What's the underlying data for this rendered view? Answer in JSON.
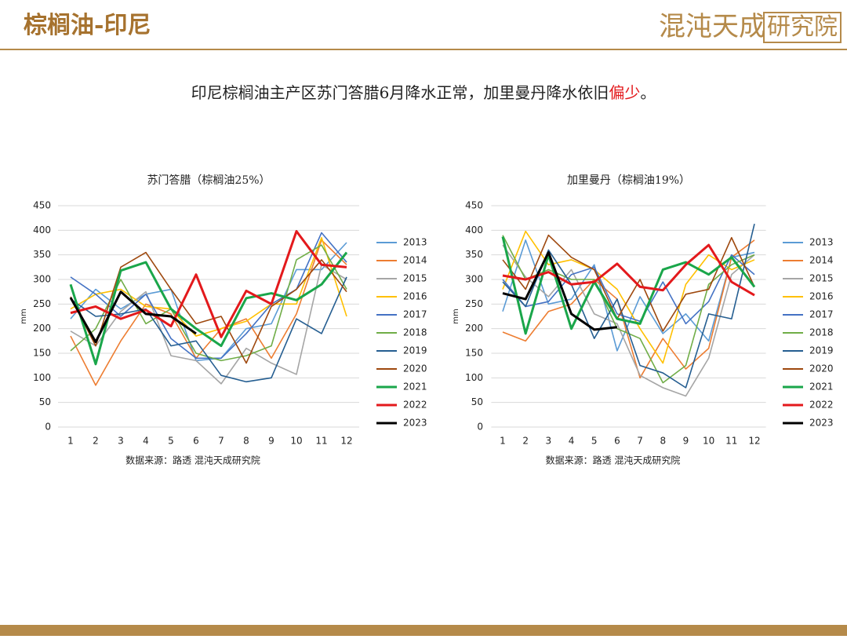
{
  "header": {
    "title": "棕榈油-印尼",
    "logo": "混沌天成",
    "logo_box": "研究院"
  },
  "subtitle": {
    "text": "印尼棕榈油主产区苏门答腊6月降水正常，加里曼丹降水依旧",
    "highlight": "偏少",
    "end": "。"
  },
  "chart_data": [
    {
      "type": "line",
      "title": "苏门答腊（棕榈油25%）",
      "y_label": "mm",
      "source": "数据来源：路透 混沌天成研究院",
      "categories": [
        "1",
        "2",
        "3",
        "4",
        "5",
        "6",
        "7",
        "8",
        "9",
        "10",
        "11",
        "12"
      ],
      "ylim": [
        0,
        450
      ],
      "yticks": [
        0,
        50,
        100,
        150,
        200,
        250,
        300,
        350,
        400,
        450
      ],
      "grid": true,
      "legend": "right",
      "series": [
        {
          "name": "2013",
          "color": "#5b9bd5",
          "values": [
            220,
            280,
            240,
            270,
            280,
            135,
            140,
            200,
            210,
            320,
            320,
            375
          ]
        },
        {
          "name": "2014",
          "color": "#ed7d31",
          "values": [
            185,
            85,
            175,
            250,
            230,
            140,
            200,
            220,
            140,
            230,
            380,
            330
          ]
        },
        {
          "name": "2015",
          "color": "#a5a5a5",
          "values": [
            195,
            165,
            235,
            275,
            145,
            135,
            88,
            160,
            130,
            107,
            330,
            300
          ]
        },
        {
          "name": "2016",
          "color": "#ffc000",
          "values": [
            240,
            270,
            280,
            245,
            240,
            185,
            200,
            215,
            250,
            250,
            385,
            225
          ]
        },
        {
          "name": "2017",
          "color": "#4472c4",
          "values": [
            305,
            270,
            225,
            270,
            180,
            140,
            140,
            190,
            250,
            280,
            395,
            335
          ]
        },
        {
          "name": "2018",
          "color": "#70ad47",
          "values": [
            155,
            200,
            300,
            210,
            240,
            150,
            135,
            145,
            165,
            340,
            370,
            280
          ]
        },
        {
          "name": "2019",
          "color": "#255e91",
          "values": [
            260,
            225,
            230,
            240,
            165,
            175,
            105,
            92,
            100,
            220,
            190,
            305
          ]
        },
        {
          "name": "2020",
          "color": "#9e480e",
          "values": [
            265,
            165,
            325,
            355,
            280,
            210,
            225,
            130,
            245,
            280,
            340,
            275
          ]
        },
        {
          "name": "2021",
          "color": "#1aa64a",
          "values": [
            290,
            128,
            318,
            335,
            240,
            200,
            165,
            262,
            272,
            258,
            290,
            355
          ]
        },
        {
          "name": "2022",
          "color": "#e3191c",
          "values": [
            232,
            245,
            220,
            238,
            205,
            310,
            183,
            277,
            250,
            398,
            330,
            325
          ]
        },
        {
          "name": "2023",
          "color": "#000000",
          "values": [
            263,
            173,
            275,
            230,
            225,
            190,
            null,
            null,
            null,
            null,
            null,
            null
          ]
        }
      ]
    },
    {
      "type": "line",
      "title": "加里曼丹（棕榈油19%）",
      "y_label": "mm",
      "source": "数据来源：路透 混沌天成研究院",
      "categories": [
        "1",
        "2",
        "3",
        "4",
        "5",
        "6",
        "7",
        "8",
        "9",
        "10",
        "11",
        "12"
      ],
      "ylim": [
        0,
        450
      ],
      "yticks": [
        0,
        50,
        100,
        150,
        200,
        250,
        300,
        350,
        400,
        450
      ],
      "grid": true,
      "legend": "right",
      "series": [
        {
          "name": "2013",
          "color": "#5b9bd5",
          "values": [
            235,
            380,
            250,
            260,
            330,
            155,
            265,
            190,
            230,
            175,
            345,
            355
          ]
        },
        {
          "name": "2014",
          "color": "#ed7d31",
          "values": [
            193,
            175,
            235,
            250,
            300,
            260,
            100,
            180,
            118,
            160,
            345,
            380
          ]
        },
        {
          "name": "2015",
          "color": "#a5a5a5",
          "values": [
            370,
            305,
            265,
            320,
            230,
            210,
            105,
            80,
            63,
            140,
            310,
            350
          ]
        },
        {
          "name": "2016",
          "color": "#ffc000",
          "values": [
            280,
            398,
            330,
            340,
            320,
            280,
            200,
            130,
            290,
            350,
            320,
            340
          ]
        },
        {
          "name": "2017",
          "color": "#4472c4",
          "values": [
            300,
            245,
            255,
            310,
            325,
            230,
            215,
            295,
            210,
            255,
            350,
            310
          ]
        },
        {
          "name": "2018",
          "color": "#70ad47",
          "values": [
            390,
            300,
            320,
            300,
            300,
            200,
            180,
            90,
            125,
            290,
            330,
            350
          ]
        },
        {
          "name": "2019",
          "color": "#255e91",
          "values": [
            295,
            245,
            360,
            290,
            180,
            260,
            125,
            110,
            80,
            230,
            220,
            413
          ]
        },
        {
          "name": "2020",
          "color": "#9e480e",
          "values": [
            340,
            280,
            390,
            345,
            320,
            220,
            300,
            195,
            270,
            280,
            385,
            285
          ]
        },
        {
          "name": "2021",
          "color": "#1aa64a",
          "values": [
            387,
            190,
            350,
            200,
            295,
            220,
            210,
            320,
            335,
            310,
            345,
            285
          ]
        },
        {
          "name": "2022",
          "color": "#e3191c",
          "values": [
            308,
            300,
            315,
            290,
            295,
            332,
            285,
            278,
            330,
            370,
            295,
            268
          ]
        },
        {
          "name": "2023",
          "color": "#000000",
          "values": [
            272,
            260,
            355,
            230,
            198,
            203,
            null,
            null,
            null,
            null,
            null,
            null
          ]
        }
      ]
    }
  ]
}
